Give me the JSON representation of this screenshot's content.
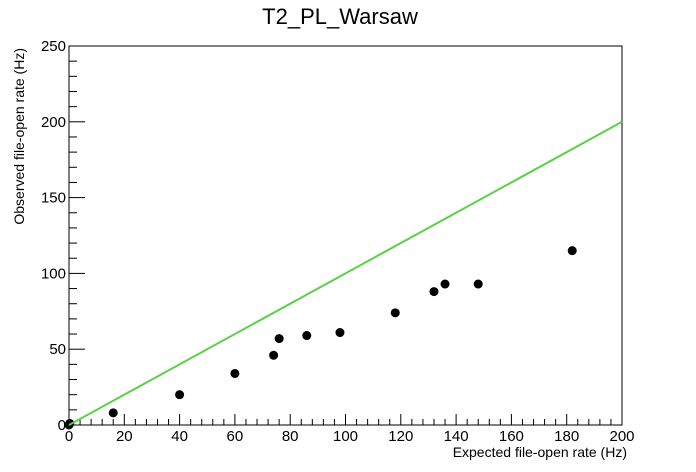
{
  "chart_data": {
    "type": "scatter",
    "title": "T2_PL_Warsaw",
    "xlabel": "Expected file-open rate (Hz)",
    "ylabel": "Observed file-open rate (Hz)",
    "xlim": [
      0,
      200
    ],
    "ylim": [
      0,
      250
    ],
    "x_ticks": [
      0,
      20,
      40,
      60,
      80,
      100,
      120,
      140,
      160,
      180,
      200
    ],
    "y_ticks": [
      0,
      50,
      100,
      150,
      200,
      250
    ],
    "x_tick_labels": [
      "0",
      "20",
      "40",
      "60",
      "80",
      "100",
      "120",
      "140",
      "160",
      "180",
      "200"
    ],
    "y_tick_labels": [
      "0",
      "50",
      "100",
      "150",
      "200",
      "250"
    ],
    "grid": false,
    "legend": "none",
    "series": [
      {
        "type": "scatter",
        "color": "#000000",
        "points": [
          {
            "x": 0,
            "y": 0
          },
          {
            "x": 0.3,
            "y": 1
          },
          {
            "x": 16,
            "y": 8
          },
          {
            "x": 40,
            "y": 20
          },
          {
            "x": 60,
            "y": 34
          },
          {
            "x": 74,
            "y": 46
          },
          {
            "x": 76,
            "y": 57
          },
          {
            "x": 86,
            "y": 59
          },
          {
            "x": 98,
            "y": 61
          },
          {
            "x": 118,
            "y": 74
          },
          {
            "x": 132,
            "y": 88
          },
          {
            "x": 136,
            "y": 93
          },
          {
            "x": 148,
            "y": 93
          },
          {
            "x": 182,
            "y": 115
          }
        ]
      },
      {
        "type": "line",
        "color": "#5ad146",
        "points": [
          {
            "x": 0,
            "y": 0
          },
          {
            "x": 200,
            "y": 200
          }
        ]
      }
    ]
  }
}
